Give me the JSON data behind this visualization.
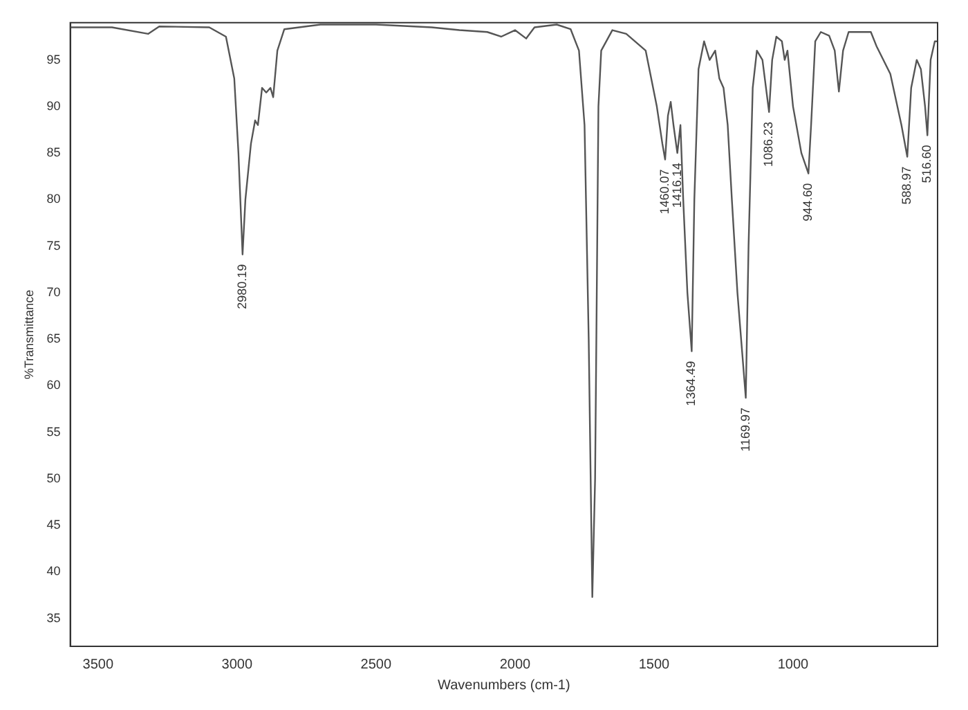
{
  "chart_data": {
    "type": "line",
    "xlabel": "Wavenumbers (cm-1)",
    "ylabel": "%Transmittance",
    "xlim": [
      3600,
      480
    ],
    "xticks": [
      3500,
      3000,
      2500,
      2000,
      1500,
      1000
    ],
    "ylim": [
      32,
      99
    ],
    "yticks": [
      35,
      40,
      45,
      50,
      55,
      60,
      65,
      70,
      75,
      80,
      85,
      90,
      95
    ],
    "grid": false,
    "legend": false,
    "marker": "none",
    "line_style": "solid",
    "series": [
      {
        "color": "#555555",
        "x": [
          3600,
          3450,
          3320,
          3280,
          3100,
          3040,
          3010,
          2995,
          2980.19,
          2970,
          2950,
          2935,
          2925,
          2910,
          2895,
          2880,
          2870,
          2855,
          2830,
          2700,
          2500,
          2300,
          2200,
          2100,
          2050,
          2000,
          1960,
          1930,
          1850,
          1800,
          1770,
          1750,
          1735,
          1722,
          1712,
          1700,
          1690,
          1650,
          1600,
          1530,
          1490,
          1470,
          1460.07,
          1450,
          1440,
          1430,
          1416.14,
          1405,
          1395,
          1380,
          1364.49,
          1355,
          1340,
          1320,
          1300,
          1280,
          1265,
          1250,
          1235,
          1220,
          1200,
          1169.97,
          1160,
          1145,
          1130,
          1110,
          1086.23,
          1075,
          1060,
          1040,
          1030,
          1020,
          1000,
          970,
          944.6,
          935,
          920,
          900,
          870,
          850,
          835,
          820,
          800,
          720,
          700,
          650,
          610,
          588.97,
          575,
          555,
          540,
          525,
          516.6,
          505,
          490,
          480
        ],
        "values": [
          98.5,
          98.5,
          97.8,
          98.6,
          98.5,
          97.5,
          93,
          85,
          74.1,
          80,
          86,
          88.5,
          88,
          92,
          91.5,
          92,
          91,
          96,
          98.3,
          98.8,
          98.8,
          98.5,
          98.2,
          98,
          97.5,
          98.2,
          97.3,
          98.5,
          98.8,
          98.3,
          96,
          88,
          65,
          37.3,
          50,
          90,
          96,
          98.2,
          97.8,
          96,
          90,
          86,
          84.3,
          89,
          90.5,
          88,
          85,
          88,
          80,
          70,
          63.7,
          80,
          94,
          97,
          95,
          96,
          93,
          92,
          88,
          80,
          70,
          58.7,
          75,
          92,
          96,
          95,
          89.4,
          95,
          97.5,
          97,
          95,
          96,
          90,
          85,
          82.8,
          88,
          97,
          98,
          97.6,
          96,
          91.6,
          96,
          98,
          98,
          96.5,
          93.5,
          88,
          84.6,
          92,
          95,
          94,
          90,
          86.9,
          95,
          97,
          97
        ]
      }
    ],
    "annotations": [
      {
        "text": "2980.19",
        "x": 2980.19,
        "y": 74.1
      },
      {
        "text": "1460.07",
        "x": 1460.07,
        "y": 84.3
      },
      {
        "text": "1416.14",
        "x": 1416.14,
        "y": 85
      },
      {
        "text": "1364.49",
        "x": 1364.49,
        "y": 63.7
      },
      {
        "text": "1169.97",
        "x": 1169.97,
        "y": 58.7
      },
      {
        "text": "1086.23",
        "x": 1086.23,
        "y": 89.4
      },
      {
        "text": "944.60",
        "x": 944.6,
        "y": 82.8
      },
      {
        "text": "588.97",
        "x": 588.97,
        "y": 84.6
      },
      {
        "text": "516.60",
        "x": 516.6,
        "y": 86.9
      }
    ]
  }
}
